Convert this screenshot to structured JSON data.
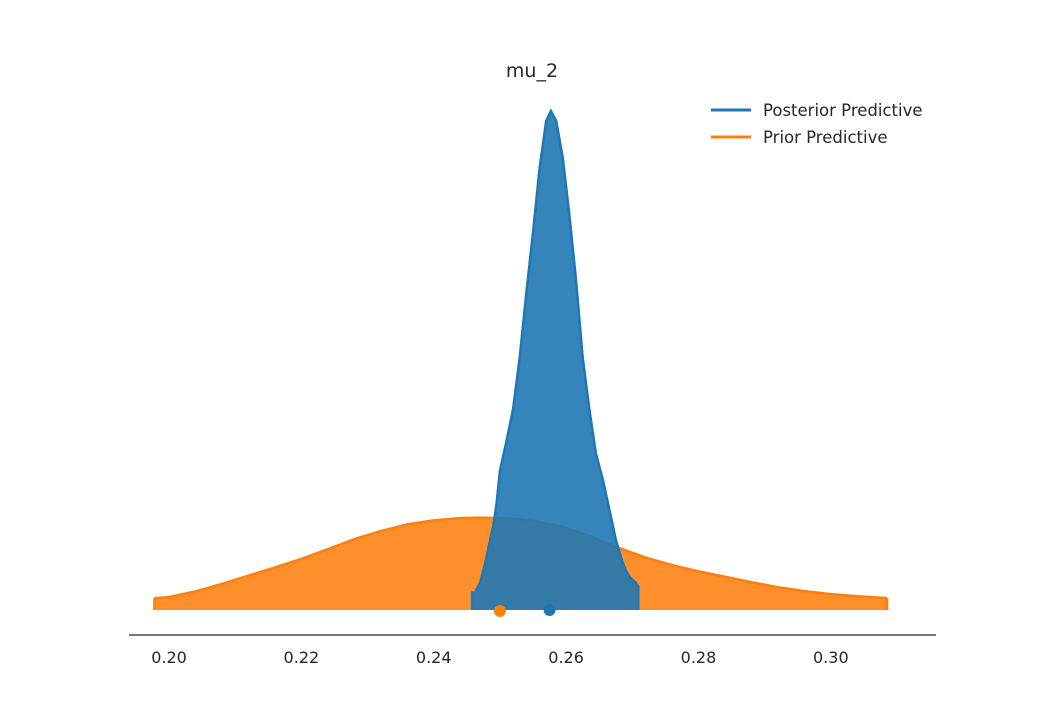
{
  "chart_data": {
    "type": "area",
    "title": "mu_2",
    "xlabel": "",
    "ylabel": "",
    "xlim": [
      0.194,
      0.3135
    ],
    "x_ticks": [
      0.2,
      0.22,
      0.24,
      0.26,
      0.28,
      0.3
    ],
    "x_tick_labels": [
      "0.20",
      "0.22",
      "0.24",
      "0.26",
      "0.28",
      "0.30"
    ],
    "y_axis_visible": false,
    "grid": false,
    "legend_position": "top-right",
    "series": [
      {
        "name": "Posterior Predictive",
        "color": "#1f77b4",
        "x": [
          0.2463,
          0.247,
          0.2478,
          0.2485,
          0.249,
          0.2495,
          0.25,
          0.251,
          0.252,
          0.253,
          0.254,
          0.255,
          0.256,
          0.257,
          0.2577,
          0.2585,
          0.2595,
          0.2605,
          0.2615,
          0.2625,
          0.2635,
          0.2645,
          0.2655,
          0.2665,
          0.2675,
          0.2685,
          0.269,
          0.2697,
          0.2705,
          0.271
        ],
        "density": [
          0.075,
          0.11,
          0.19,
          0.28,
          0.34,
          0.43,
          0.56,
          0.68,
          0.81,
          1.02,
          1.28,
          1.52,
          1.78,
          1.97,
          2.01,
          1.97,
          1.82,
          1.59,
          1.33,
          1.02,
          0.81,
          0.63,
          0.53,
          0.41,
          0.285,
          0.195,
          0.16,
          0.13,
          0.11,
          0.09
        ],
        "hdi": [
          0.2458,
          0.2709
        ],
        "point_estimate": 0.2575
      },
      {
        "name": "Prior Predictive",
        "color": "#ff7f0e",
        "x": [
          0.1978,
          0.2,
          0.204,
          0.208,
          0.212,
          0.216,
          0.22,
          0.224,
          0.228,
          0.232,
          0.236,
          0.24,
          0.244,
          0.247,
          0.25,
          0.253,
          0.256,
          0.26,
          0.264,
          0.268,
          0.272,
          0.276,
          0.28,
          0.284,
          0.288,
          0.292,
          0.296,
          0.3,
          0.304,
          0.3085
        ],
        "density": [
          0.048,
          0.052,
          0.075,
          0.105,
          0.138,
          0.171,
          0.206,
          0.245,
          0.285,
          0.318,
          0.345,
          0.361,
          0.37,
          0.372,
          0.37,
          0.365,
          0.355,
          0.331,
          0.293,
          0.25,
          0.211,
          0.181,
          0.156,
          0.134,
          0.112,
          0.092,
          0.076,
          0.064,
          0.055,
          0.048
        ],
        "point_estimate": 0.25
      }
    ]
  }
}
